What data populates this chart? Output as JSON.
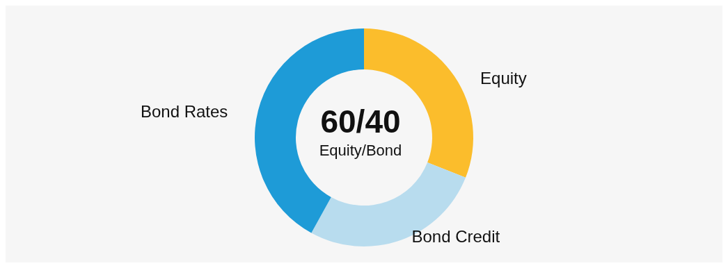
{
  "chart_data": {
    "type": "donut",
    "categories": [
      "Equity",
      "Bond Credit",
      "Bond Rates"
    ],
    "values": [
      31,
      27,
      42
    ],
    "colors": [
      "#fbbd2c",
      "#b8dcee",
      "#1e9bd7"
    ],
    "annotations": [
      "60/40",
      "Equity/Bond"
    ]
  }
}
